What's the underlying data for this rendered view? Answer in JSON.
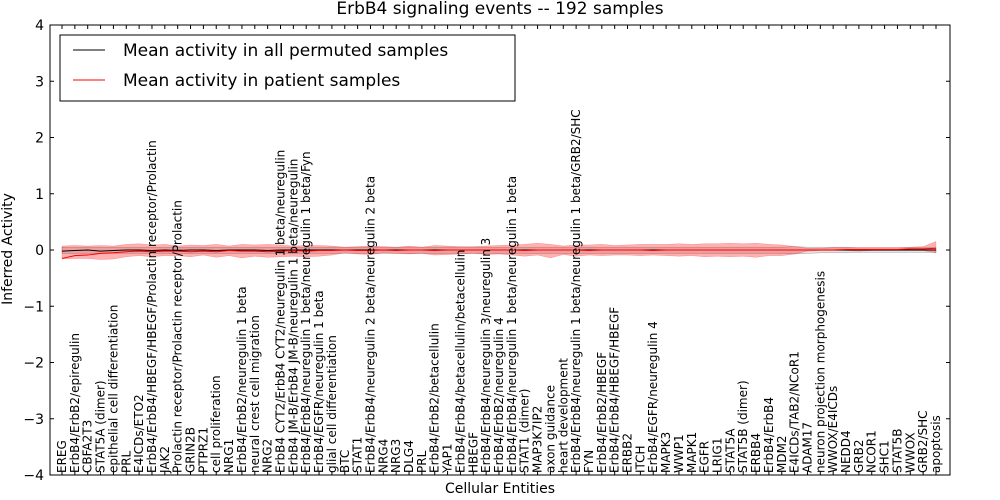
{
  "chart_data": {
    "type": "line",
    "title": "ErbB4 signaling events -- 192 samples",
    "xlabel": "Cellular Entities",
    "ylabel": "Inferred Activity",
    "ylim": [
      -4,
      4
    ],
    "yticks": [
      -4,
      -3,
      -2,
      -1,
      0,
      1,
      2,
      3,
      4
    ],
    "grid": false,
    "legend_position": "top-left",
    "categories": [
      "EREG",
      "ErbB4/ErbB2/epiregulin",
      "CBFA2T3",
      "STAT5A (dimer)",
      "epithelial cell differentiation",
      "PRL",
      "E4ICDs/ETO2",
      "ErbB4/ErbB4/HBEGF/HBEGF/Prolactin receptor/Prolactin",
      "JAK2",
      "Prolactin receptor/Prolactin receptor/Prolactin",
      "GRIN2B",
      "PTPRZ1",
      "cell proliferation",
      "NRG1",
      "ErbB4/ErbB2/neuregulin 1 beta",
      "neural crest cell migration",
      "NRG2",
      "ErbB4 CYT2/ErbB4 CYT2/neuregulin 1 beta/neuregulin",
      "ErbB4 JM-B/ErbB4 JM-B/neuregulin 1 beta/neuregulin",
      "ErbB4/ErbB4/neuregulin 1 beta/neuregulin 1 beta/Fyn",
      "ErbB4/EGFR/neuregulin 1 beta",
      "glial cell differentiation",
      "BTC",
      "STAT1",
      "ErbB4/ErbB4/neuregulin 2 beta/neuregulin 2 beta",
      "NRG4",
      "NRG3",
      "DLG4",
      "PRL",
      "ErbB4/ErbB2/betacellulin",
      "YAP1",
      "ErbB4/ErbB4/betacellulin/betacellulin",
      "HBEGF",
      "ErbB4/ErbB4/neuregulin 3/neuregulin 3",
      "ErbB4/ErbB2/neuregulin 4",
      "ErbB4/ErbB4/neuregulin 1 beta/neuregulin 1 beta",
      "STAT1 (dimer)",
      "MAP3K7IP2",
      "axon guidance",
      "heart development",
      "ErbB4/ErbB4/neuregulin 1 beta/neuregulin 1 beta/GRB2/SHC",
      "FYN",
      "ErbB4/ErbB2/HBEGF",
      "ErbB4/ErbB4/HBEGF/HBEGF",
      "ERBB2",
      "ITCH",
      "ErbB4/EGFR/neuregulin 4",
      "MAPK3",
      "WWP1",
      "MAPK1",
      "EGFR",
      "LRIG1",
      "STAT5A",
      "STAT5B (dimer)",
      "ERBB4",
      "ErbB4/ErbB4",
      "MDM2",
      "E4ICDs/TAB2/NCoR1",
      "ADAM17",
      "neuron projection morphogenesis",
      "WWOX/E4ICDs",
      "NEDD4",
      "GRB2",
      "NCOR1",
      "SHC1",
      "STAT5B",
      "WWOX",
      "GRB2/SHC",
      "apoptosis"
    ],
    "series": [
      {
        "name": "Mean activity in all permuted samples",
        "color": "#000000",
        "values": [
          -0.02,
          -0.01,
          0.0,
          -0.02,
          -0.01,
          0.0,
          0.0,
          -0.01,
          0.0,
          -0.01,
          0.0,
          0.0,
          -0.01,
          0.0,
          0.0,
          0.0,
          -0.01,
          0.0,
          0.0,
          0.0,
          0.0,
          0.0,
          0.0,
          0.0,
          0.0,
          0.0,
          0.0,
          0.0,
          0.0,
          0.0,
          0.0,
          0.0,
          0.0,
          0.0,
          0.0,
          0.0,
          0.0,
          0.0,
          0.0,
          0.0,
          0.0,
          0.0,
          0.0,
          0.0,
          0.0,
          0.0,
          0.0,
          0.0,
          0.0,
          0.0,
          0.0,
          0.0,
          0.0,
          0.0,
          0.0,
          0.0,
          0.0,
          0.0,
          0.0,
          0.0,
          0.0,
          0.0,
          0.0,
          0.0,
          0.0,
          0.0,
          0.0,
          0.0,
          0.0
        ],
        "band_low": [
          -0.06,
          -0.06,
          -0.06,
          -0.06,
          -0.06,
          -0.06,
          -0.06,
          -0.06,
          -0.06,
          -0.06,
          -0.06,
          -0.06,
          -0.06,
          -0.06,
          -0.06,
          -0.06,
          -0.06,
          -0.06,
          -0.06,
          -0.06,
          -0.06,
          -0.06,
          -0.06,
          -0.06,
          -0.06,
          -0.06,
          -0.06,
          -0.06,
          -0.06,
          -0.06,
          -0.06,
          -0.06,
          -0.06,
          -0.06,
          -0.06,
          -0.06,
          -0.06,
          -0.06,
          -0.06,
          -0.06,
          -0.06,
          -0.06,
          -0.06,
          -0.06,
          -0.06,
          -0.06,
          -0.06,
          -0.06,
          -0.06,
          -0.06,
          -0.06,
          -0.06,
          -0.06,
          -0.06,
          -0.06,
          -0.06,
          -0.06,
          -0.07,
          -0.06,
          -0.05,
          -0.05,
          -0.05,
          -0.04,
          -0.04,
          -0.04,
          -0.04,
          -0.04,
          -0.04,
          -0.04
        ],
        "band_high": [
          0.05,
          0.05,
          0.05,
          0.05,
          0.05,
          0.05,
          0.05,
          0.05,
          0.05,
          0.05,
          0.05,
          0.05,
          0.05,
          0.05,
          0.05,
          0.05,
          0.05,
          0.05,
          0.05,
          0.05,
          0.05,
          0.05,
          0.05,
          0.05,
          0.05,
          0.05,
          0.05,
          0.05,
          0.05,
          0.05,
          0.05,
          0.05,
          0.05,
          0.05,
          0.05,
          0.05,
          0.05,
          0.05,
          0.05,
          0.05,
          0.05,
          0.05,
          0.05,
          0.05,
          0.05,
          0.05,
          0.05,
          0.05,
          0.05,
          0.05,
          0.05,
          0.05,
          0.05,
          0.05,
          0.05,
          0.05,
          0.05,
          0.06,
          0.05,
          0.05,
          0.05,
          0.05,
          0.04,
          0.04,
          0.04,
          0.04,
          0.04,
          0.04,
          0.04
        ]
      },
      {
        "name": "Mean activity in patient samples",
        "color": "#ff0000",
        "values": [
          -0.15,
          -0.1,
          -0.09,
          -0.06,
          -0.05,
          -0.03,
          -0.02,
          -0.03,
          -0.02,
          -0.02,
          -0.03,
          -0.02,
          -0.03,
          -0.01,
          -0.02,
          -0.02,
          -0.03,
          -0.02,
          -0.01,
          -0.02,
          -0.01,
          -0.01,
          0.0,
          -0.01,
          -0.01,
          0.0,
          -0.01,
          0.0,
          0.0,
          -0.01,
          0.0,
          0.0,
          0.0,
          0.0,
          0.0,
          0.0,
          -0.01,
          0.0,
          0.0,
          0.0,
          0.0,
          -0.01,
          0.0,
          0.0,
          0.0,
          0.0,
          -0.01,
          0.0,
          0.0,
          0.0,
          0.0,
          0.0,
          0.0,
          0.0,
          0.0,
          0.0,
          0.0,
          0.0,
          0.0,
          0.0,
          0.0,
          0.01,
          0.01,
          0.01,
          0.01,
          0.01,
          0.02,
          0.02,
          0.03
        ],
        "band_low": [
          -0.16,
          -0.15,
          -0.15,
          -0.17,
          -0.16,
          -0.12,
          -0.1,
          -0.12,
          -0.1,
          -0.1,
          -0.12,
          -0.09,
          -0.13,
          -0.1,
          -0.14,
          -0.11,
          -0.13,
          -0.12,
          -0.11,
          -0.12,
          -0.11,
          -0.09,
          -0.05,
          -0.07,
          -0.08,
          -0.05,
          -0.06,
          -0.07,
          -0.06,
          -0.09,
          -0.08,
          -0.07,
          -0.06,
          -0.08,
          -0.07,
          -0.09,
          -0.11,
          -0.09,
          -0.14,
          -0.08,
          -0.11,
          -0.09,
          -0.1,
          -0.09,
          -0.09,
          -0.1,
          -0.09,
          -0.1,
          -0.11,
          -0.1,
          -0.12,
          -0.11,
          -0.12,
          -0.11,
          -0.13,
          -0.1,
          -0.1,
          -0.07,
          -0.02,
          -0.01,
          -0.01,
          -0.01,
          -0.02,
          -0.01,
          -0.01,
          -0.01,
          -0.01,
          -0.01,
          -0.05
        ],
        "band_high": [
          0.07,
          0.08,
          0.07,
          0.08,
          0.07,
          0.1,
          0.11,
          0.09,
          0.1,
          0.07,
          0.09,
          0.08,
          0.1,
          0.07,
          0.1,
          0.09,
          0.1,
          0.09,
          0.07,
          0.08,
          0.08,
          0.07,
          0.05,
          0.06,
          0.07,
          0.06,
          0.05,
          0.07,
          0.05,
          0.08,
          0.07,
          0.06,
          0.06,
          0.07,
          0.08,
          0.09,
          0.1,
          0.12,
          0.1,
          0.07,
          0.09,
          0.09,
          0.1,
          0.08,
          0.09,
          0.1,
          0.1,
          0.1,
          0.11,
          0.1,
          0.11,
          0.11,
          0.12,
          0.11,
          0.12,
          0.1,
          0.09,
          0.06,
          0.03,
          0.03,
          0.04,
          0.04,
          0.04,
          0.04,
          0.04,
          0.04,
          0.05,
          0.06,
          0.15
        ]
      }
    ]
  }
}
